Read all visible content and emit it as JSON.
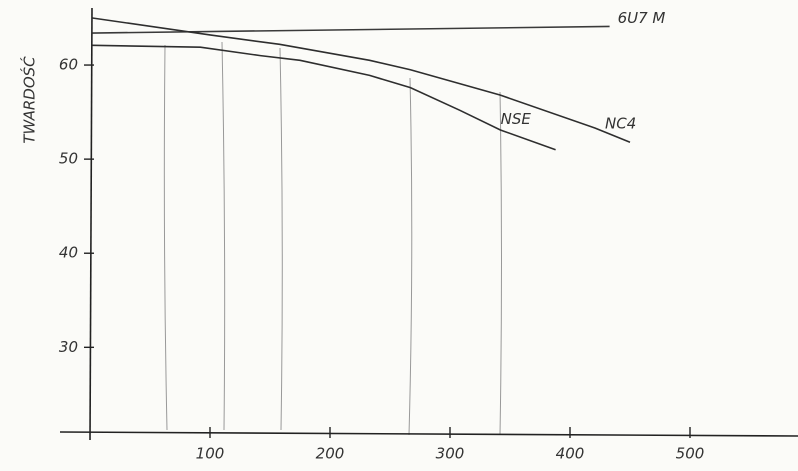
{
  "chart_data": {
    "type": "line",
    "y_label": "TWARDOŚĆ",
    "xlim": [
      0,
      590
    ],
    "ylim": [
      21,
      65
    ],
    "xticks": [
      100,
      200,
      300,
      400,
      500
    ],
    "yticks": [
      30,
      40,
      50,
      60
    ],
    "series": [
      {
        "name": "6U7 M",
        "color": "#3a3a3a",
        "x": [
          2,
          433
        ],
        "values": [
          63.4,
          64.1
        ]
      },
      {
        "name": "NC4",
        "color": "#2e2e2e",
        "x": [
          2,
          100,
          158,
          233,
          267,
          342,
          421,
          450
        ],
        "values": [
          65.0,
          63.2,
          62.2,
          60.5,
          59.5,
          56.8,
          53.3,
          51.8
        ]
      },
      {
        "name": "NSE",
        "color": "#2e2e2e",
        "x": [
          2,
          92,
          142,
          175,
          233,
          267,
          308,
          342,
          388
        ],
        "values": [
          62.1,
          61.9,
          61.0,
          60.5,
          58.9,
          57.6,
          55.2,
          53.1,
          51.0
        ]
      }
    ]
  }
}
